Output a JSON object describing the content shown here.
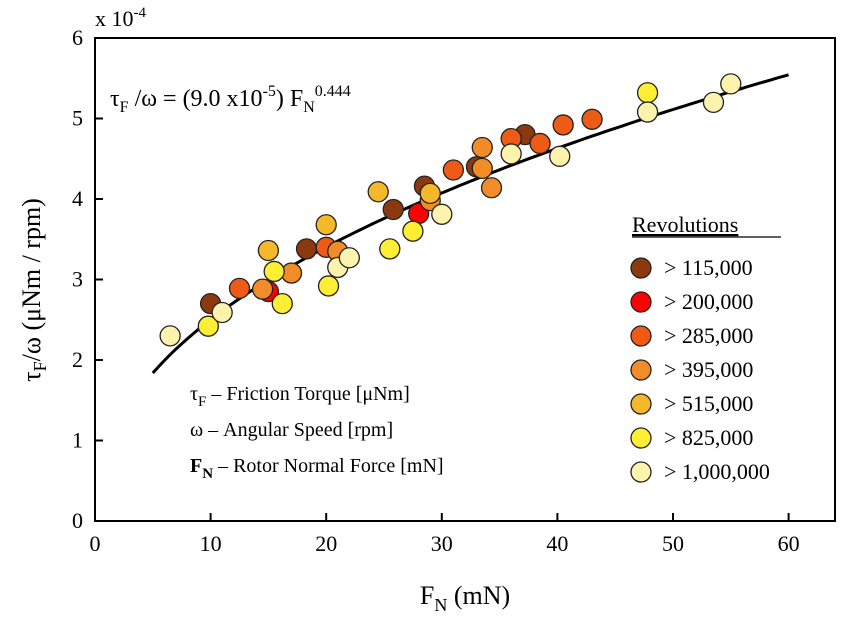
{
  "chart_data": {
    "type": "scatter",
    "title": "",
    "xlabel": {
      "base": "F",
      "sub": "N",
      "rest": " (mN)"
    },
    "ylabel": {
      "b1": "τ",
      "s1": "F",
      "b2": "/ω  (μNm / rpm)"
    },
    "y_multiplier": {
      "text": "x 10",
      "exp": "-4"
    },
    "xlim": [
      0,
      65
    ],
    "ylim": [
      0,
      6
    ],
    "xticks": [
      "0",
      "10",
      "20",
      "30",
      "40",
      "50",
      "60"
    ],
    "yticks": [
      "0",
      "1",
      "2",
      "3",
      "4",
      "5",
      "6"
    ],
    "grid": false,
    "fit": {
      "coef": 9e-05,
      "exponent": 0.444,
      "x_range": [
        5,
        60
      ],
      "equation": {
        "lhs": "τ",
        "lhs_sub": "F",
        "mid": " /ω = (9.0 x10",
        "mid_sup": "-5",
        "tail": ") F",
        "tail_sub": "N",
        "tail_sup": "0.444"
      }
    },
    "definitions": [
      {
        "sym": "τ",
        "sub": "F",
        "text": " – Friction Torque [μNm]",
        "bold": false
      },
      {
        "sym": "ω",
        "sub": "",
        "text": "  – Angular Speed [rpm]",
        "bold": false
      },
      {
        "sym": "F",
        "sub": "N",
        "text": " – Rotor Normal Force [mN]",
        "bold": true
      }
    ],
    "legend": {
      "title": "Revolutions",
      "placement": "right"
    },
    "series": [
      {
        "name": "> 115,000",
        "color": "#8b3a0f",
        "points": [
          [
            10.0,
            2.7
          ],
          [
            18.3,
            3.38
          ],
          [
            25.8,
            3.87
          ],
          [
            28.5,
            4.16
          ],
          [
            33.0,
            4.4
          ],
          [
            37.2,
            4.8
          ]
        ]
      },
      {
        "name": "> 200,000",
        "color": "#ff0000",
        "points": [
          [
            15.0,
            2.85
          ],
          [
            28.0,
            3.82
          ]
        ]
      },
      {
        "name": "> 285,000",
        "color": "#ee5b17",
        "points": [
          [
            12.5,
            2.89
          ],
          [
            20.0,
            3.4
          ],
          [
            31.0,
            4.36
          ],
          [
            36.0,
            4.75
          ],
          [
            38.5,
            4.69
          ],
          [
            40.5,
            4.92
          ],
          [
            43.0,
            4.99
          ]
        ]
      },
      {
        "name": "> 395,000",
        "color": "#f28c28",
        "points": [
          [
            14.5,
            2.88
          ],
          [
            17.0,
            3.08
          ],
          [
            21.0,
            3.35
          ],
          [
            29.0,
            3.98
          ],
          [
            33.5,
            4.64
          ],
          [
            34.3,
            4.14
          ],
          [
            33.5,
            4.38
          ]
        ]
      },
      {
        "name": "> 515,000",
        "color": "#f5b82b",
        "points": [
          [
            15.0,
            3.36
          ],
          [
            20.0,
            3.68
          ],
          [
            24.5,
            4.09
          ],
          [
            29.0,
            4.07
          ]
        ]
      },
      {
        "name": "> 825,000",
        "color": "#ffee33",
        "points": [
          [
            9.8,
            2.42
          ],
          [
            15.5,
            3.1
          ],
          [
            16.2,
            2.7
          ],
          [
            20.2,
            2.92
          ],
          [
            25.5,
            3.38
          ],
          [
            27.5,
            3.6
          ],
          [
            47.8,
            5.32
          ]
        ]
      },
      {
        "name": "> 1,000,000",
        "color": "#fdf3ad",
        "points": [
          [
            6.5,
            2.3
          ],
          [
            11.0,
            2.59
          ],
          [
            21.0,
            3.15
          ],
          [
            22.0,
            3.27
          ],
          [
            30.0,
            3.81
          ],
          [
            36.0,
            4.56
          ],
          [
            40.2,
            4.53
          ],
          [
            47.8,
            5.08
          ],
          [
            53.5,
            5.2
          ],
          [
            55.0,
            5.43
          ]
        ]
      }
    ]
  }
}
